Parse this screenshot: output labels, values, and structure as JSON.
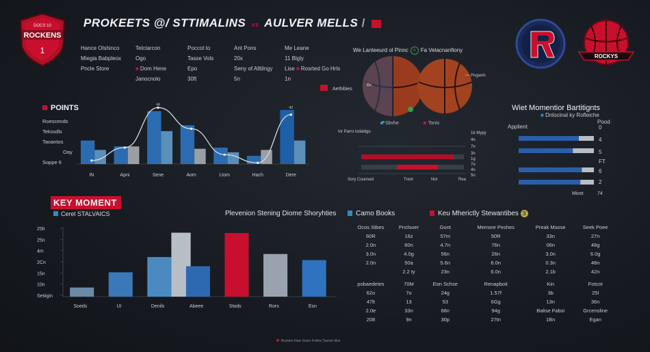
{
  "header": {
    "title": "PROKEETS @/ STTIMALINS",
    "vs": "vs",
    "title2": "AULVER MELLS",
    "logo_text": "ROCKENS",
    "logo_top": "DOCS 10",
    "logo2_text": "ROCKYS"
  },
  "info": [
    [
      "Hance Olshinco",
      "Telctarcon",
      "Poccot to",
      "Ant Pons",
      "Me Leane"
    ],
    [
      "Miegia Babpleox",
      "Ogo",
      "Tasse Vols",
      "20x",
      "11 Blgly"
    ],
    [
      "Pncle Store",
      "Dom Hene",
      "Epo",
      "Seny of  Alltilngy",
      "Lise",
      "Rosrted Go",
      "Hrls"
    ],
    [
      "Janocnolo",
      "30ft",
      "",
      "5n",
      "1n"
    ]
  ],
  "points": {
    "label": "POINTS",
    "row_labels": [
      "Roescends",
      "Tekssdls",
      "Taoantos",
      "Oay",
      "Soppe 6"
    ]
  },
  "ball_panel": {
    "title_left": "We Lanteeurd ol Pinnc",
    "title_icon": "o",
    "title_right": "Fa Velacnanfiony",
    "left_label": "Aethibies",
    "inner_label": "Bx",
    "right_label": "Pngwnh",
    "legend": [
      "Sbvhe",
      "Tonis"
    ]
  },
  "momentum": {
    "title": "Wiet Momentior Bartitignts",
    "subtitle": "Dnlocinal ky Rofleiche",
    "col1": "Applient",
    "col2": "Pood",
    "values": [
      "0",
      "4",
      "5",
      "FT",
      "6",
      "2"
    ],
    "footer": "Miost",
    "footer_val": "74"
  },
  "key_moment": {
    "label": "KEY MOMENT",
    "sub": "Cerel STALVAICS"
  },
  "sections": {
    "s1": "Plevenion Stening Diome Shoryhties",
    "s2": "Camo Books",
    "s3": "Keu Mherictly Stewantibes",
    "s3_badge": "3"
  },
  "table": {
    "rows": [
      [
        "Ocos Stbes",
        "Pnclsoer",
        "Gont",
        "Memore Peshes",
        "Preak Msose",
        "Seek Poee"
      ],
      [
        "60R",
        "16z",
        "57m",
        "50R",
        "33n",
        "27n"
      ],
      [
        "2.0n",
        "60n",
        "4.7n",
        "76n",
        "06n",
        "48g"
      ],
      [
        "3.0n",
        "4.0g",
        "56n",
        "26n",
        "3.0n",
        "6.0g"
      ],
      [
        "2.0n",
        "50a",
        "5.6n",
        "6.0n",
        "0.3n",
        "48n"
      ],
      [
        "",
        "2.2 ty",
        "23n",
        "6.0n",
        "2.1b",
        "42n"
      ],
      [
        "pobaedetes",
        "70M",
        "Eon Schse",
        "Renapboit",
        "Kin",
        "Fotcot"
      ],
      [
        "62o",
        "7o",
        "24g",
        "1.57f",
        "3b",
        "25l"
      ],
      [
        "47lt",
        "13",
        "53",
        "6Gg",
        "13n",
        "36n"
      ],
      [
        "2.0e",
        "33n",
        "66n",
        "94g",
        "Balise Fabsi",
        "Grcensline"
      ],
      [
        "208",
        "9n",
        "30p",
        "27tn",
        "1Bn",
        "Egan"
      ]
    ]
  },
  "footer_text": "Brandre Naw Sosm Frellra Tasnve tilos",
  "colors": {
    "accent_red": "#c8102e",
    "bar_blue": "#2b6cb0",
    "bar_light": "#5b8fb9",
    "bar_gray": "#9a9ea5",
    "line": "#d6dbe2"
  },
  "chart_data": [
    {
      "type": "bar",
      "title": "POINTS",
      "categories": [
        "IN",
        "Apni",
        "Sene",
        "Aom",
        "Ltom",
        "Hach",
        "Dere"
      ],
      "series": [
        {
          "values": [
            20,
            15,
            45,
            33,
            14,
            7,
            46
          ]
        },
        {
          "values": [
            12,
            15,
            28,
            13,
            10,
            12,
            20
          ]
        }
      ],
      "line_series": {
        "values": [
          3,
          14,
          48,
          30,
          8,
          1,
          42
        ]
      },
      "ylim": [
        0,
        50
      ],
      "peak_labels": [
        "44",
        "42"
      ]
    },
    {
      "type": "bar",
      "title": "KEY MOMENT",
      "categories": [
        "Soeds",
        "UI",
        "Denils",
        "Abeee",
        "Stods",
        "Rors",
        "Esn"
      ],
      "ylabels": [
        "Setiigin",
        "10n",
        "15n",
        "2Cn",
        "4m",
        "25n",
        "25h"
      ],
      "series": [
        {
          "values": [
            3,
            8,
            13,
            10,
            17,
            14,
            12
          ]
        },
        {
          "values": [
            null,
            null,
            21,
            null,
            null,
            null,
            null
          ]
        }
      ],
      "ylim": [
        0,
        22
      ],
      "highlight_category": "Stods"
    },
    {
      "type": "bar",
      "title": "Wiet Momentior Bartitignts",
      "categories": [
        "r1",
        "r2",
        "r3",
        "r4"
      ],
      "series": [
        {
          "values": [
            80,
            72,
            84,
            82
          ]
        },
        {
          "values": [
            20,
            28,
            16,
            18
          ]
        }
      ],
      "xlim": [
        0,
        100
      ]
    },
    {
      "type": "bar",
      "title": "",
      "categories": [
        "Sory Counsed",
        "Trent",
        "Nol",
        "Rea"
      ],
      "series": [
        {
          "values": [
            90,
            70,
            40,
            55
          ]
        },
        {
          "values": [
            40,
            60,
            75,
            60
          ]
        }
      ],
      "right_labels": [
        "1b Mypy",
        "4o",
        "7n",
        "3n",
        "1g",
        "7o",
        "4o",
        "5n"
      ],
      "legend_left": "Inr Parro lodaldgo",
      "xlim": [
        0,
        100
      ]
    }
  ]
}
